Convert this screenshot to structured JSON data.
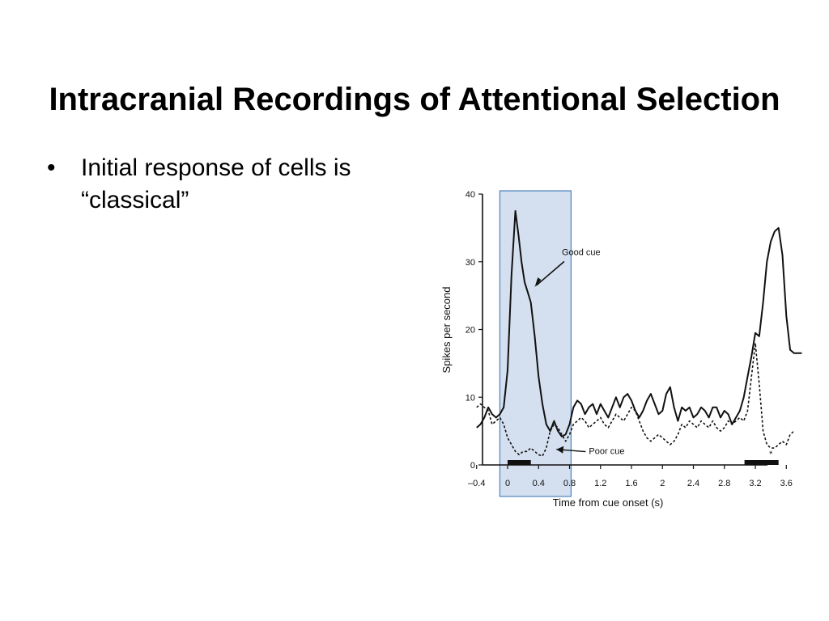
{
  "slide": {
    "title": "Intracranial Recordings of Attentional Selection",
    "bullets": [
      {
        "marker": "•",
        "text": "Initial response of cells is “classical”"
      }
    ]
  },
  "chart_data": {
    "type": "line",
    "xlabel": "Time from cue onset (s)",
    "ylabel": "Spikes per second",
    "xlim": [
      -0.4,
      3.6
    ],
    "ylim": [
      0,
      40
    ],
    "x_ticks": [
      "–0.4",
      "0",
      "0.4",
      "0.8",
      "1.2",
      "1.6",
      "2",
      "2.4",
      "2.8",
      "3.2",
      "3.6"
    ],
    "y_ticks": [
      "0",
      "10",
      "20",
      "30",
      "40"
    ],
    "grid": false,
    "highlight_region": {
      "x_range": [
        -0.1,
        0.82
      ],
      "color": "#c6d5ea",
      "border": "#4f81bd"
    },
    "series": [
      {
        "name": "Good cue",
        "style": "solid",
        "x": [
          -0.4,
          -0.35,
          -0.3,
          -0.25,
          -0.2,
          -0.15,
          -0.1,
          -0.05,
          0.0,
          0.05,
          0.1,
          0.14,
          0.18,
          0.22,
          0.26,
          0.3,
          0.35,
          0.4,
          0.45,
          0.5,
          0.55,
          0.6,
          0.65,
          0.7,
          0.75,
          0.8,
          0.85,
          0.9,
          0.95,
          1.0,
          1.05,
          1.1,
          1.15,
          1.2,
          1.25,
          1.3,
          1.35,
          1.4,
          1.45,
          1.5,
          1.55,
          1.6,
          1.65,
          1.7,
          1.75,
          1.8,
          1.85,
          1.9,
          1.95,
          2.0,
          2.05,
          2.1,
          2.15,
          2.2,
          2.25,
          2.3,
          2.35,
          2.4,
          2.45,
          2.5,
          2.55,
          2.6,
          2.65,
          2.7,
          2.75,
          2.8,
          2.85,
          2.9,
          2.95,
          3.0,
          3.05,
          3.1,
          3.15,
          3.2,
          3.25,
          3.3,
          3.35,
          3.4,
          3.45,
          3.5,
          3.55,
          3.6,
          3.65,
          3.7,
          3.75,
          3.8
        ],
        "values": [
          5.5,
          6,
          7,
          8.5,
          7.5,
          7,
          7.5,
          8.5,
          14,
          28,
          37.5,
          34,
          30,
          27,
          25.5,
          24,
          19,
          13,
          9,
          6,
          5,
          6.5,
          5,
          4.2,
          4.5,
          6,
          8.5,
          9.5,
          9,
          7.5,
          8.5,
          9,
          7.5,
          9,
          8,
          7,
          8.5,
          10,
          8.5,
          10,
          10.5,
          9.5,
          8,
          7,
          8,
          9.5,
          10.5,
          9,
          7.5,
          8,
          10.5,
          11.5,
          8.5,
          6.5,
          8.5,
          8,
          8.5,
          7,
          7.5,
          8.5,
          8,
          7,
          8.5,
          8.5,
          7,
          8,
          7.5,
          6,
          7,
          8,
          10,
          13,
          16,
          19.5,
          19,
          24,
          30,
          33,
          34.5,
          35,
          31,
          22,
          17,
          16.5,
          16.5,
          16.5
        ]
      },
      {
        "name": "Poor cue",
        "style": "dotted",
        "x": [
          -0.4,
          -0.35,
          -0.3,
          -0.25,
          -0.2,
          -0.15,
          -0.1,
          -0.05,
          0.0,
          0.05,
          0.1,
          0.15,
          0.2,
          0.25,
          0.3,
          0.35,
          0.4,
          0.45,
          0.5,
          0.55,
          0.6,
          0.65,
          0.7,
          0.75,
          0.8,
          0.85,
          0.9,
          0.95,
          1.0,
          1.05,
          1.1,
          1.15,
          1.2,
          1.25,
          1.3,
          1.35,
          1.4,
          1.45,
          1.5,
          1.55,
          1.6,
          1.65,
          1.7,
          1.75,
          1.8,
          1.85,
          1.9,
          1.95,
          2.0,
          2.05,
          2.1,
          2.15,
          2.2,
          2.25,
          2.3,
          2.35,
          2.4,
          2.45,
          2.5,
          2.55,
          2.6,
          2.65,
          2.7,
          2.75,
          2.8,
          2.85,
          2.9,
          2.95,
          3.0,
          3.05,
          3.1,
          3.15,
          3.2,
          3.25,
          3.3,
          3.35,
          3.4,
          3.45,
          3.5,
          3.55,
          3.6,
          3.65,
          3.7
        ],
        "values": [
          8.5,
          9,
          8.5,
          8,
          6,
          6.5,
          7,
          6,
          4,
          3,
          2,
          1.5,
          2,
          2,
          2.5,
          2,
          1.5,
          1.3,
          2.5,
          5,
          6,
          5.5,
          4.5,
          3.5,
          4.5,
          6,
          6.5,
          7,
          6.5,
          5.5,
          6,
          6.5,
          7,
          6,
          5.5,
          6.5,
          7.5,
          7,
          6.5,
          7.5,
          8.5,
          8,
          6.5,
          5,
          4,
          3.5,
          4,
          4.5,
          4,
          3.5,
          3,
          3.5,
          4.5,
          6,
          5.5,
          6.5,
          6,
          5.5,
          6.5,
          6,
          5.5,
          6.5,
          5.5,
          5,
          5.5,
          6.5,
          6,
          6.5,
          7,
          6.5,
          8,
          13,
          18,
          12,
          5,
          3,
          2.5,
          2.5,
          3,
          3.5,
          3,
          4.5,
          5
        ]
      }
    ],
    "annotations": [
      {
        "label": "Good cue",
        "x": 0.7,
        "y": 31
      },
      {
        "label": "Poor cue",
        "x": 1.05,
        "y": 1.6
      },
      {
        "label": "*",
        "x": 3.4,
        "y": 1.2
      }
    ],
    "stimulus_bars": [
      {
        "x_range": [
          0.0,
          0.3
        ]
      },
      {
        "x_range": [
          3.06,
          3.5
        ]
      }
    ]
  }
}
